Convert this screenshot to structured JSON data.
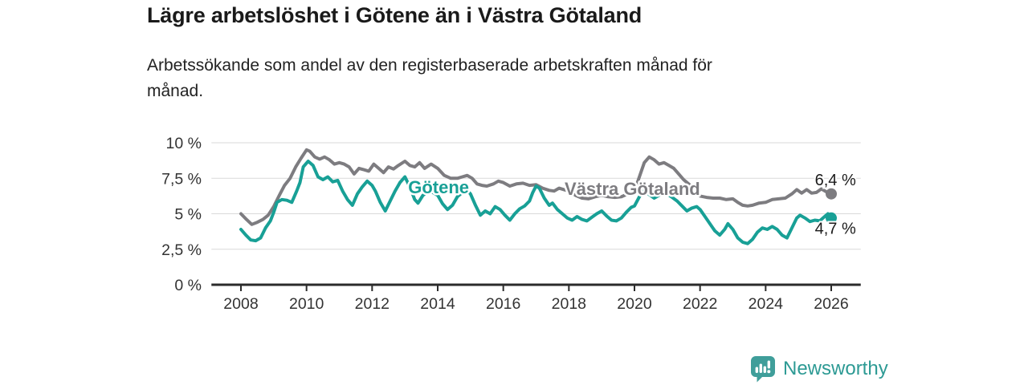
{
  "header": {
    "title": "Lägre arbetslöshet i Götene än i Västra Götaland",
    "subtitle": "Arbetssökande som andel av den registerbaserade arbetskraften månad för\nmånad."
  },
  "footer": {
    "brand": "Newsworthy"
  },
  "colors": {
    "title_text": "#1a1a1a",
    "subtitle_text": "#222222",
    "grid": "#d9d9d9",
    "axis": "#2b2b2b",
    "tick_text": "#333333",
    "annotation_text": "#1b1b1b",
    "gotene_teal": "#18a096",
    "vastra_gray": "#7d7c80",
    "brand_teal": "#3f9e9a",
    "brand_text_teal": "#2d9a94"
  },
  "chart_data": {
    "type": "line",
    "title": "Lägre arbetslöshet i Götene än i Västra Götaland",
    "subtitle": "Arbetssökande som andel av den registerbaserade arbetskraften månad för månad.",
    "unit": "percent of registered labour force",
    "grid": true,
    "legend": "inline-labels",
    "xlim": [
      2007.1,
      2026.9
    ],
    "ylim": [
      0,
      10
    ],
    "x_ticks": [
      2008,
      2010,
      2012,
      2014,
      2016,
      2018,
      2020,
      2022,
      2024,
      2026
    ],
    "y_ticks": [
      {
        "value": 0,
        "label": "0 %"
      },
      {
        "value": 2.5,
        "label": "2,5 %"
      },
      {
        "value": 5,
        "label": "5 %"
      },
      {
        "value": 7.5,
        "label": "7,5 %"
      },
      {
        "value": 10,
        "label": "10 %"
      }
    ],
    "series": [
      {
        "name": "Västra Götaland",
        "color": "#7d7c80",
        "label_anchor": {
          "year": 2017.87,
          "pct": 6.33
        },
        "end_dot": {
          "year": 2026.0,
          "pct": 6.4
        },
        "end_annotation": {
          "text": "6,4 %",
          "year": 2025.5,
          "pct": 7.0
        },
        "points": [
          [
            2008.0,
            5.0
          ],
          [
            2008.17,
            4.6
          ],
          [
            2008.33,
            4.25
          ],
          [
            2008.5,
            4.4
          ],
          [
            2008.67,
            4.6
          ],
          [
            2008.83,
            4.9
          ],
          [
            2009.0,
            5.5
          ],
          [
            2009.17,
            6.3
          ],
          [
            2009.33,
            7.0
          ],
          [
            2009.5,
            7.5
          ],
          [
            2009.67,
            8.3
          ],
          [
            2009.83,
            8.9
          ],
          [
            2010.0,
            9.5
          ],
          [
            2010.1,
            9.4
          ],
          [
            2010.25,
            9.0
          ],
          [
            2010.4,
            8.85
          ],
          [
            2010.55,
            9.0
          ],
          [
            2010.7,
            8.8
          ],
          [
            2010.85,
            8.5
          ],
          [
            2011.0,
            8.6
          ],
          [
            2011.15,
            8.5
          ],
          [
            2011.3,
            8.3
          ],
          [
            2011.45,
            7.8
          ],
          [
            2011.6,
            8.2
          ],
          [
            2011.75,
            8.1
          ],
          [
            2011.9,
            8.0
          ],
          [
            2012.05,
            8.5
          ],
          [
            2012.2,
            8.2
          ],
          [
            2012.35,
            7.9
          ],
          [
            2012.5,
            8.3
          ],
          [
            2012.65,
            8.15
          ],
          [
            2012.8,
            8.4
          ],
          [
            2013.0,
            8.7
          ],
          [
            2013.15,
            8.4
          ],
          [
            2013.3,
            8.3
          ],
          [
            2013.45,
            8.6
          ],
          [
            2013.6,
            8.2
          ],
          [
            2013.8,
            8.5
          ],
          [
            2014.0,
            8.2
          ],
          [
            2014.2,
            7.7
          ],
          [
            2014.4,
            7.5
          ],
          [
            2014.6,
            7.5
          ],
          [
            2014.75,
            7.6
          ],
          [
            2014.9,
            7.7
          ],
          [
            2015.05,
            7.5
          ],
          [
            2015.2,
            7.1
          ],
          [
            2015.35,
            7.0
          ],
          [
            2015.5,
            6.95
          ],
          [
            2015.7,
            7.1
          ],
          [
            2015.85,
            7.3
          ],
          [
            2016.0,
            7.2
          ],
          [
            2016.2,
            6.95
          ],
          [
            2016.4,
            7.1
          ],
          [
            2016.6,
            7.15
          ],
          [
            2016.8,
            7.0
          ],
          [
            2017.0,
            7.05
          ],
          [
            2017.2,
            6.8
          ],
          [
            2017.4,
            6.65
          ],
          [
            2017.55,
            6.6
          ],
          [
            2017.7,
            6.8
          ],
          [
            2017.85,
            6.7
          ],
          [
            2018.0,
            6.6
          ],
          [
            2018.2,
            6.3
          ],
          [
            2018.4,
            6.1
          ],
          [
            2018.6,
            6.05
          ],
          [
            2018.8,
            6.2
          ],
          [
            2019.0,
            6.3
          ],
          [
            2019.2,
            6.2
          ],
          [
            2019.4,
            6.15
          ],
          [
            2019.6,
            6.2
          ],
          [
            2019.8,
            6.4
          ],
          [
            2020.0,
            6.6
          ],
          [
            2020.15,
            7.6
          ],
          [
            2020.3,
            8.6
          ],
          [
            2020.45,
            9.0
          ],
          [
            2020.6,
            8.8
          ],
          [
            2020.75,
            8.5
          ],
          [
            2020.9,
            8.6
          ],
          [
            2021.05,
            8.4
          ],
          [
            2021.2,
            8.2
          ],
          [
            2021.35,
            7.8
          ],
          [
            2021.5,
            7.4
          ],
          [
            2021.65,
            7.1
          ],
          [
            2021.8,
            6.8
          ],
          [
            2021.9,
            6.5
          ],
          [
            2022.0,
            6.25
          ],
          [
            2022.2,
            6.15
          ],
          [
            2022.4,
            6.1
          ],
          [
            2022.6,
            6.1
          ],
          [
            2022.8,
            6.0
          ],
          [
            2023.0,
            6.05
          ],
          [
            2023.15,
            5.8
          ],
          [
            2023.3,
            5.6
          ],
          [
            2023.45,
            5.55
          ],
          [
            2023.6,
            5.6
          ],
          [
            2023.8,
            5.75
          ],
          [
            2024.0,
            5.8
          ],
          [
            2024.2,
            6.0
          ],
          [
            2024.4,
            6.05
          ],
          [
            2024.6,
            6.1
          ],
          [
            2024.8,
            6.4
          ],
          [
            2024.95,
            6.7
          ],
          [
            2025.1,
            6.45
          ],
          [
            2025.25,
            6.7
          ],
          [
            2025.4,
            6.45
          ],
          [
            2025.55,
            6.5
          ],
          [
            2025.7,
            6.75
          ],
          [
            2025.85,
            6.55
          ],
          [
            2026.0,
            6.4
          ]
        ]
      },
      {
        "name": "Götene",
        "color": "#18a096",
        "label_anchor": {
          "year": 2013.1,
          "pct": 6.44
        },
        "end_dot": {
          "year": 2026.0,
          "pct": 4.7
        },
        "end_annotation": {
          "text": "4,7 %",
          "year": 2025.5,
          "pct": 3.6
        },
        "points": [
          [
            2008.0,
            3.9
          ],
          [
            2008.15,
            3.5
          ],
          [
            2008.3,
            3.15
          ],
          [
            2008.45,
            3.1
          ],
          [
            2008.6,
            3.3
          ],
          [
            2008.75,
            4.0
          ],
          [
            2008.9,
            4.5
          ],
          [
            2009.0,
            5.1
          ],
          [
            2009.1,
            5.8
          ],
          [
            2009.25,
            6.0
          ],
          [
            2009.4,
            5.95
          ],
          [
            2009.55,
            5.8
          ],
          [
            2009.7,
            6.6
          ],
          [
            2009.8,
            7.2
          ],
          [
            2009.9,
            8.3
          ],
          [
            2010.05,
            8.7
          ],
          [
            2010.2,
            8.4
          ],
          [
            2010.35,
            7.6
          ],
          [
            2010.5,
            7.4
          ],
          [
            2010.65,
            7.6
          ],
          [
            2010.8,
            7.25
          ],
          [
            2010.95,
            7.35
          ],
          [
            2011.1,
            6.6
          ],
          [
            2011.25,
            6.0
          ],
          [
            2011.4,
            5.6
          ],
          [
            2011.55,
            6.4
          ],
          [
            2011.7,
            6.9
          ],
          [
            2011.85,
            7.3
          ],
          [
            2012.0,
            7.0
          ],
          [
            2012.1,
            6.6
          ],
          [
            2012.25,
            5.8
          ],
          [
            2012.4,
            5.2
          ],
          [
            2012.55,
            5.9
          ],
          [
            2012.7,
            6.6
          ],
          [
            2012.85,
            7.2
          ],
          [
            2013.0,
            7.6
          ],
          [
            2013.15,
            6.9
          ],
          [
            2013.3,
            6.0
          ],
          [
            2013.4,
            5.75
          ],
          [
            2013.55,
            6.3
          ],
          [
            2013.7,
            6.55
          ],
          [
            2013.85,
            6.5
          ],
          [
            2014.0,
            6.3
          ],
          [
            2014.15,
            5.7
          ],
          [
            2014.3,
            5.3
          ],
          [
            2014.45,
            5.6
          ],
          [
            2014.6,
            6.2
          ],
          [
            2014.75,
            6.5
          ],
          [
            2014.9,
            6.65
          ],
          [
            2015.0,
            6.4
          ],
          [
            2015.15,
            5.6
          ],
          [
            2015.3,
            4.9
          ],
          [
            2015.45,
            5.2
          ],
          [
            2015.6,
            5.0
          ],
          [
            2015.75,
            5.5
          ],
          [
            2015.9,
            5.3
          ],
          [
            2016.05,
            4.9
          ],
          [
            2016.2,
            4.55
          ],
          [
            2016.35,
            5.0
          ],
          [
            2016.5,
            5.35
          ],
          [
            2016.65,
            5.55
          ],
          [
            2016.8,
            5.9
          ],
          [
            2016.9,
            6.5
          ],
          [
            2017.0,
            6.95
          ],
          [
            2017.1,
            6.8
          ],
          [
            2017.25,
            6.1
          ],
          [
            2017.4,
            5.6
          ],
          [
            2017.5,
            5.75
          ],
          [
            2017.65,
            5.3
          ],
          [
            2017.8,
            5.0
          ],
          [
            2017.95,
            4.7
          ],
          [
            2018.1,
            4.55
          ],
          [
            2018.25,
            4.8
          ],
          [
            2018.4,
            4.6
          ],
          [
            2018.55,
            4.5
          ],
          [
            2018.7,
            4.75
          ],
          [
            2018.85,
            5.0
          ],
          [
            2019.0,
            5.2
          ],
          [
            2019.15,
            4.85
          ],
          [
            2019.3,
            4.55
          ],
          [
            2019.45,
            4.5
          ],
          [
            2019.6,
            4.7
          ],
          [
            2019.75,
            5.1
          ],
          [
            2019.9,
            5.45
          ],
          [
            2020.0,
            5.55
          ],
          [
            2020.15,
            6.2
          ],
          [
            2020.3,
            6.65
          ],
          [
            2020.45,
            6.35
          ],
          [
            2020.6,
            6.1
          ],
          [
            2020.75,
            6.3
          ],
          [
            2020.9,
            6.5
          ],
          [
            2021.0,
            6.4
          ],
          [
            2021.15,
            6.15
          ],
          [
            2021.3,
            5.9
          ],
          [
            2021.45,
            5.55
          ],
          [
            2021.6,
            5.2
          ],
          [
            2021.75,
            5.4
          ],
          [
            2021.9,
            5.5
          ],
          [
            2022.0,
            5.3
          ],
          [
            2022.15,
            4.8
          ],
          [
            2022.3,
            4.3
          ],
          [
            2022.45,
            3.8
          ],
          [
            2022.6,
            3.5
          ],
          [
            2022.75,
            3.9
          ],
          [
            2022.85,
            4.3
          ],
          [
            2023.0,
            3.9
          ],
          [
            2023.15,
            3.3
          ],
          [
            2023.3,
            3.0
          ],
          [
            2023.45,
            2.9
          ],
          [
            2023.6,
            3.2
          ],
          [
            2023.75,
            3.7
          ],
          [
            2023.9,
            4.0
          ],
          [
            2024.05,
            3.9
          ],
          [
            2024.2,
            4.1
          ],
          [
            2024.35,
            3.9
          ],
          [
            2024.5,
            3.5
          ],
          [
            2024.65,
            3.3
          ],
          [
            2024.8,
            4.0
          ],
          [
            2024.95,
            4.7
          ],
          [
            2025.05,
            4.9
          ],
          [
            2025.2,
            4.7
          ],
          [
            2025.35,
            4.45
          ],
          [
            2025.5,
            4.55
          ],
          [
            2025.65,
            4.5
          ],
          [
            2025.8,
            4.8
          ],
          [
            2025.9,
            5.0
          ],
          [
            2026.0,
            4.7
          ]
        ]
      }
    ]
  }
}
